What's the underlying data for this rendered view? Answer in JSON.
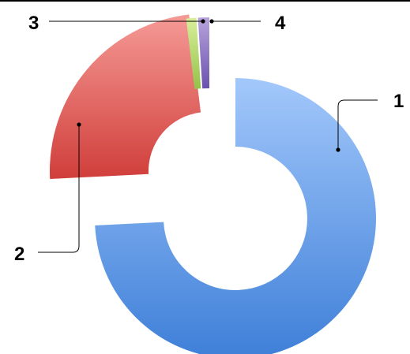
{
  "chart_data": {
    "type": "donut",
    "categories": [
      "1",
      "2",
      "3",
      "4"
    ],
    "values": [
      74.2,
      23.9,
      0.9,
      1.0
    ],
    "exploded": true,
    "legend": "none",
    "colors": {
      "1": [
        "#a3c8fb",
        "#3e7fd8"
      ],
      "2": [
        "#f59a96",
        "#d03e3a"
      ],
      "3": [
        "#d9ef9a",
        "#95c24a"
      ],
      "4": [
        "#b7a4dc",
        "#6b52ad"
      ]
    }
  }
}
